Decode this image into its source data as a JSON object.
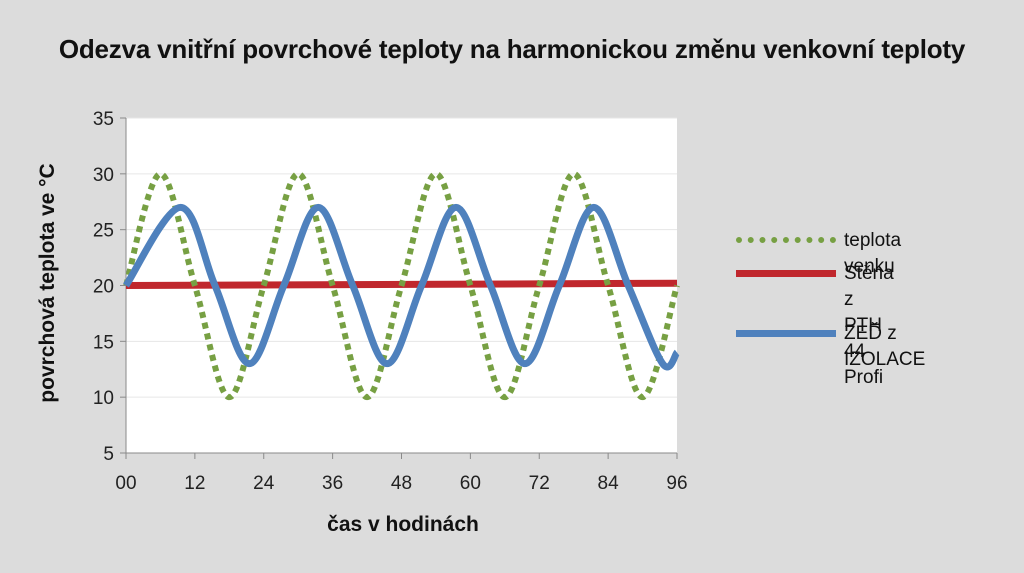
{
  "chart_data": {
    "type": "line",
    "title": "Odezva vnitřní povrchové teploty na harmonickou změnu venkovní teploty",
    "xlabel": "čas v hodinách",
    "ylabel": "povrchová teplota ve °C",
    "xlim": [
      0,
      96
    ],
    "ylim": [
      5,
      35
    ],
    "x_ticks": [
      "00",
      "12",
      "24",
      "36",
      "48",
      "60",
      "72",
      "84",
      "96"
    ],
    "y_ticks": [
      "5",
      "10",
      "15",
      "20",
      "25",
      "30",
      "35"
    ],
    "grid": "horizontal",
    "legend_position": "right",
    "series": [
      {
        "name": "teplota venku",
        "color": "#77a043",
        "style": "dotted",
        "x": [
          0,
          6,
          12,
          18,
          24,
          30,
          36,
          42,
          48,
          54,
          60,
          66,
          72,
          78,
          84,
          90,
          96
        ],
        "values": [
          20,
          30,
          20,
          10,
          20,
          30,
          20,
          10,
          20,
          30,
          20,
          10,
          20,
          30,
          20,
          10,
          20
        ]
      },
      {
        "name": "Stěna z\nPTH 44 Profi",
        "color": "#c0272d",
        "style": "solid",
        "x": [
          0,
          96
        ],
        "values": [
          20,
          20.2
        ]
      },
      {
        "name": "ZEĎ z IZOLACE",
        "color": "#4f81bd",
        "style": "solid",
        "x": [
          0,
          9.5,
          15.5,
          21.5,
          27.5,
          33.5,
          39.5,
          45.5,
          51.5,
          57.5,
          63.5,
          69.5,
          75.5,
          81.5,
          87.5,
          93.5,
          96
        ],
        "values": [
          20,
          27,
          20,
          13,
          20,
          27,
          20,
          13,
          20,
          27,
          20,
          13,
          20,
          27,
          20,
          13,
          14
        ]
      }
    ]
  }
}
